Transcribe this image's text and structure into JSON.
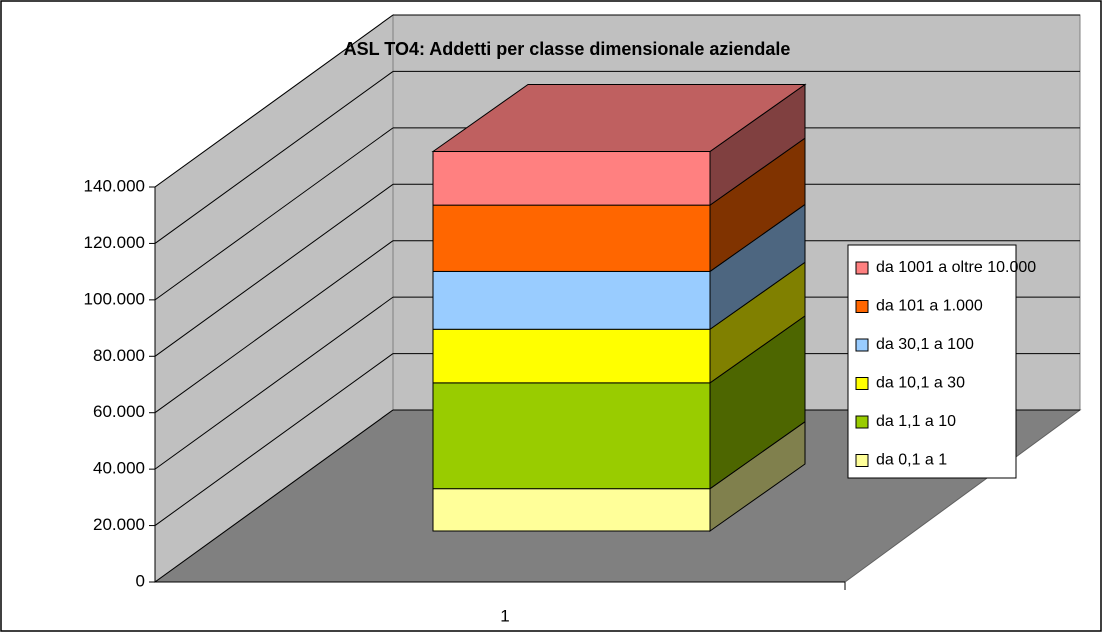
{
  "chart_data": {
    "type": "bar3d_stacked",
    "title": "ASL TO4: Addetti per classe dimensionale aziendale",
    "categories": [
      "1"
    ],
    "series": [
      {
        "name": "da 0,1 a 1",
        "color": "#ffff99",
        "values": [
          15000
        ]
      },
      {
        "name": "da 1,1 a 10",
        "color": "#99cc00",
        "values": [
          37500
        ]
      },
      {
        "name": "da 10,1 a 30",
        "color": "#ffff00",
        "values": [
          19000
        ]
      },
      {
        "name": "da 30,1 a 100",
        "color": "#99ccff",
        "values": [
          20500
        ]
      },
      {
        "name": "da 101 a 1.000",
        "color": "#ff6600",
        "values": [
          23500
        ]
      },
      {
        "name": "da 1001 a oltre 10.000",
        "color": "#ff8080",
        "values": [
          19000
        ]
      }
    ],
    "ylim": [
      0,
      140000
    ],
    "yticks": [
      0,
      {
        "value": 20000,
        "label": "20.000"
      },
      {
        "value": 40000,
        "label": "40.000"
      },
      {
        "value": 60000,
        "label": "60.000"
      },
      {
        "value": 80000,
        "label": "80.000"
      },
      {
        "value": 100000,
        "label": "100.000"
      },
      {
        "value": 120000,
        "label": "120.000"
      },
      {
        "value": 140000,
        "label": "140.000"
      }
    ],
    "grid": true,
    "legend": "right"
  }
}
